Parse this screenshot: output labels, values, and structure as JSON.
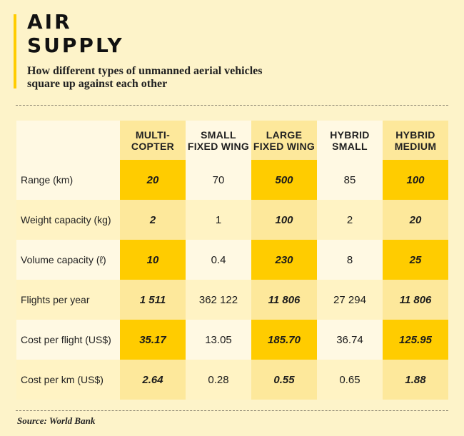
{
  "title_line1": "AIR",
  "title_line2": "SUPPLY",
  "subtitle": "How different types of unmanned aerial vehicles square up against each other",
  "source": "Source: World Bank",
  "colors": {
    "background": "#fdf3c9",
    "light_cell": "#fff9e3",
    "alt_row": "#fff3c4",
    "highlight_strong": "#ffcc00",
    "highlight_soft": "#fde89b",
    "accent_bar": "#ffcc00"
  },
  "chart_data": {
    "type": "table",
    "columns": [
      {
        "label": "MULTI-\nCOPTER",
        "highlighted": true
      },
      {
        "label": "SMALL\nFIXED WING",
        "highlighted": false
      },
      {
        "label": "LARGE\nFIXED WING",
        "highlighted": true
      },
      {
        "label": "HYBRID\nSMALL",
        "highlighted": false
      },
      {
        "label": "HYBRID\nMEDIUM",
        "highlighted": true
      }
    ],
    "rows": [
      {
        "label": "Range (km)",
        "values": [
          "20",
          "70",
          "500",
          "85",
          "100"
        ]
      },
      {
        "label": "Weight capacity (kg)",
        "values": [
          "2",
          "1",
          "100",
          "2",
          "20"
        ]
      },
      {
        "label": "Volume capacity (ℓ)",
        "values": [
          "10",
          "0.4",
          "230",
          "8",
          "25"
        ]
      },
      {
        "label": "Flights per year",
        "values": [
          "1 511",
          "362 122",
          "11 806",
          "27 294",
          "11 806"
        ]
      },
      {
        "label": "Cost per flight (US$)",
        "values": [
          "35.17",
          "13.05",
          "185.70",
          "36.74",
          "125.95"
        ]
      },
      {
        "label": "Cost per km (US$)",
        "values": [
          "2.64",
          "0.28",
          "0.55",
          "0.65",
          "1.88"
        ]
      }
    ]
  }
}
